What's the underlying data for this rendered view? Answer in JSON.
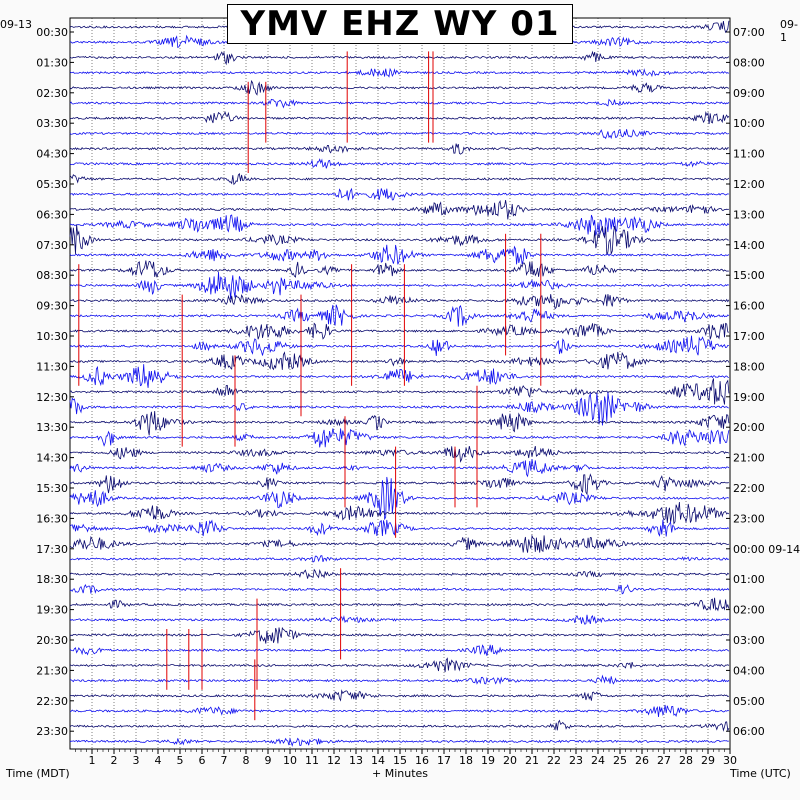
{
  "title": "YMV EHZ WY 01",
  "left_corner": "09-13",
  "right_corner": "09-1",
  "footer": {
    "left": "Time (MDT)",
    "center": "+ Minutes",
    "right": "Time (UTC)"
  },
  "colors": {
    "trace_dark": "#0a0a6e",
    "trace_bright": "#1010f0",
    "event_marker": "#e00000",
    "grid": "#000000"
  },
  "chart_data": {
    "type": "helicorder",
    "x": {
      "min": 0,
      "max": 30,
      "ticks": [
        "1",
        "2",
        "3",
        "4",
        "5",
        "6",
        "7",
        "8",
        "9",
        "10",
        "11",
        "12",
        "13",
        "14",
        "15",
        "16",
        "17",
        "18",
        "19",
        "20",
        "21",
        "22",
        "23",
        "24",
        "25",
        "26",
        "27",
        "28",
        "29",
        "30"
      ]
    },
    "rows_per_hour": 2,
    "left_labels": [
      "00:30",
      "01:30",
      "02:30",
      "03:30",
      "04:30",
      "05:30",
      "06:30",
      "07:30",
      "08:30",
      "09:30",
      "10:30",
      "11:30",
      "12:30",
      "13:30",
      "14:30",
      "15:30",
      "16:30",
      "17:30",
      "18:30",
      "19:30",
      "20:30",
      "21:30",
      "22:30",
      "23:30"
    ],
    "right_labels": [
      "07:00",
      "08:00",
      "09:00",
      "10:00",
      "11:00",
      "12:00",
      "13:00",
      "14:00",
      "15:00",
      "16:00",
      "17:00",
      "18:00",
      "19:00",
      "20:00",
      "21:00",
      "22:00",
      "23:00",
      "00:00 09-14",
      "01:00",
      "02:00",
      "03:00",
      "04:00",
      "05:00",
      "06:00"
    ],
    "event_markers": [
      {
        "row": 2,
        "minute": 8.1,
        "rows_span": 3
      },
      {
        "row": 2,
        "minute": 8.9,
        "rows_span": 2
      },
      {
        "row": 1,
        "minute": 12.6,
        "rows_span": 3
      },
      {
        "row": 1,
        "minute": 16.3,
        "rows_span": 3
      },
      {
        "row": 1,
        "minute": 16.5,
        "rows_span": 3
      },
      {
        "row": 7,
        "minute": 19.8,
        "rows_span": 4
      },
      {
        "row": 7,
        "minute": 21.4,
        "rows_span": 5
      },
      {
        "row": 8,
        "minute": 12.8,
        "rows_span": 4
      },
      {
        "row": 8,
        "minute": 15.2,
        "rows_span": 4
      },
      {
        "row": 8,
        "minute": 0.4,
        "rows_span": 4
      },
      {
        "row": 9,
        "minute": 5.1,
        "rows_span": 5
      },
      {
        "row": 9,
        "minute": 10.5,
        "rows_span": 4
      },
      {
        "row": 11,
        "minute": 7.5,
        "rows_span": 3
      },
      {
        "row": 12,
        "minute": 18.5,
        "rows_span": 4
      },
      {
        "row": 13,
        "minute": 12.5,
        "rows_span": 3
      },
      {
        "row": 14,
        "minute": 14.8,
        "rows_span": 3
      },
      {
        "row": 14,
        "minute": 17.5,
        "rows_span": 2
      },
      {
        "row": 18,
        "minute": 12.3,
        "rows_span": 3
      },
      {
        "row": 19,
        "minute": 8.5,
        "rows_span": 3
      },
      {
        "row": 20,
        "minute": 4.4,
        "rows_span": 2
      },
      {
        "row": 20,
        "minute": 5.4,
        "rows_span": 2
      },
      {
        "row": 20,
        "minute": 6.0,
        "rows_span": 2
      },
      {
        "row": 21,
        "minute": 8.4,
        "rows_span": 2
      }
    ]
  }
}
